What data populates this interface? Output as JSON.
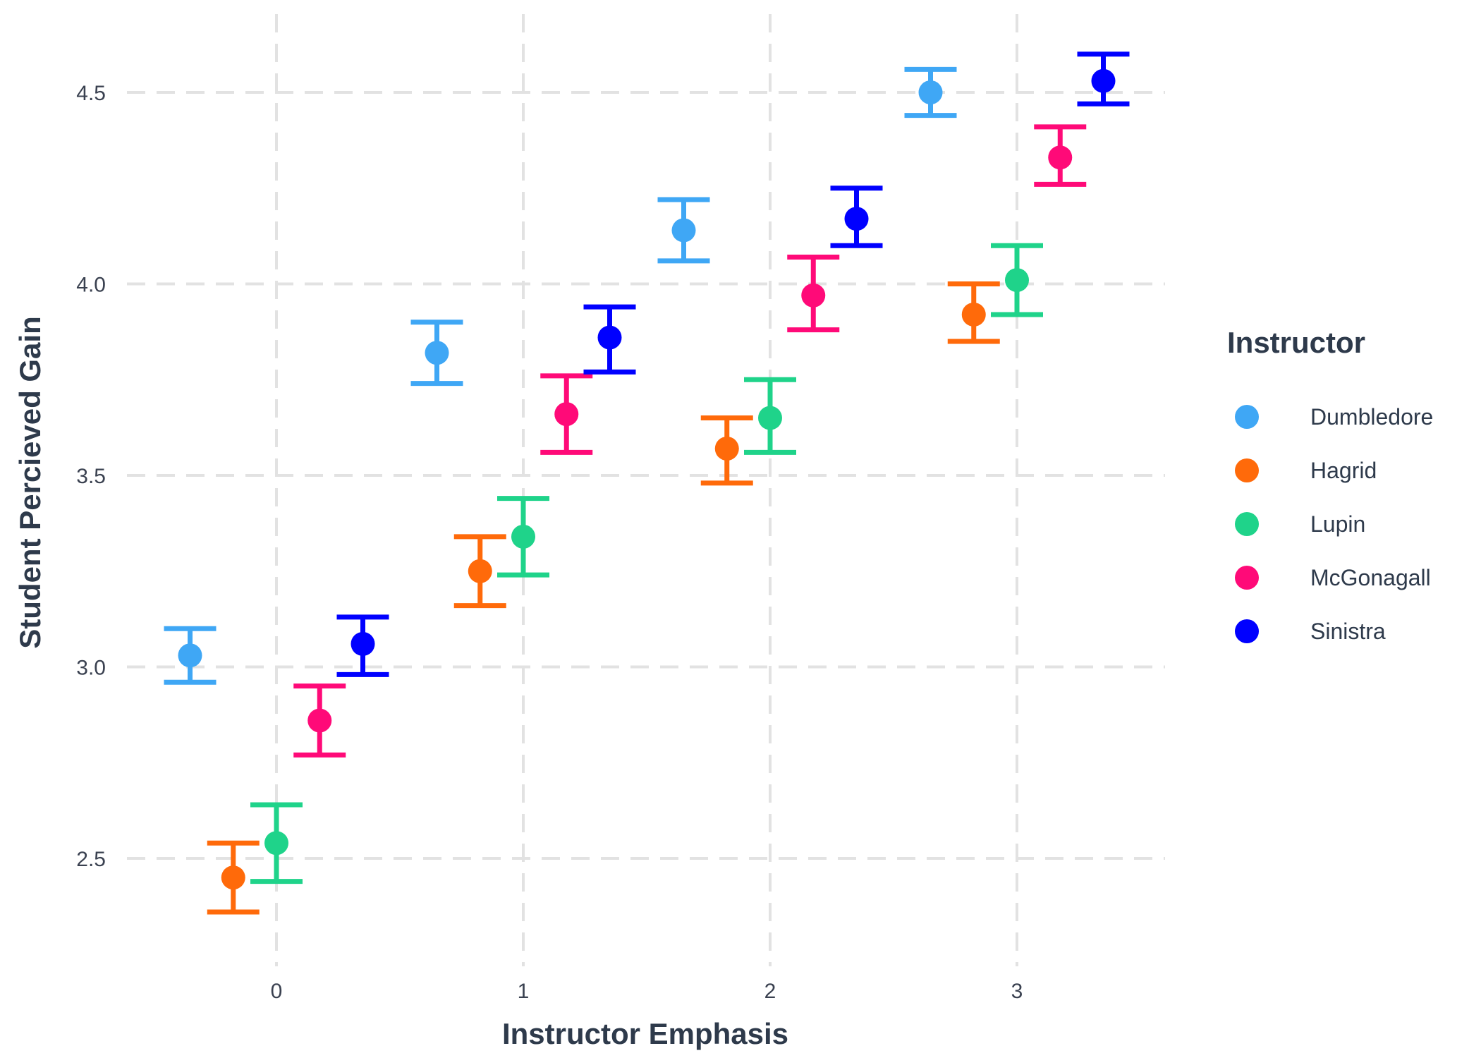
{
  "chart_data": {
    "type": "scatter",
    "xlabel": "Instructor Emphasis",
    "ylabel": "Student Percieved Gain",
    "xlim": [
      -0.5,
      3.6
    ],
    "ylim": [
      2.28,
      4.7
    ],
    "x_ticks": [
      0,
      1,
      2,
      3
    ],
    "y_ticks": [
      2.5,
      3.0,
      3.5,
      4.0,
      4.5
    ],
    "grid": true,
    "error_bars": true,
    "legend": {
      "title": "Instructor",
      "placement": "right"
    },
    "series": [
      {
        "name": "Dumbledore",
        "color": "#3fa7f5",
        "points": [
          {
            "x": 0,
            "y": 3.03,
            "lo": 2.96,
            "hi": 3.1
          },
          {
            "x": 1,
            "y": 3.82,
            "lo": 3.74,
            "hi": 3.9
          },
          {
            "x": 2,
            "y": 4.14,
            "lo": 4.06,
            "hi": 4.22
          },
          {
            "x": 3,
            "y": 4.5,
            "lo": 4.44,
            "hi": 4.56
          }
        ]
      },
      {
        "name": "Hagrid",
        "color": "#ff6a0a",
        "points": [
          {
            "x": 0,
            "y": 2.45,
            "lo": 2.36,
            "hi": 2.54
          },
          {
            "x": 1,
            "y": 3.25,
            "lo": 3.16,
            "hi": 3.34
          },
          {
            "x": 2,
            "y": 3.57,
            "lo": 3.48,
            "hi": 3.65
          },
          {
            "x": 3,
            "y": 3.92,
            "lo": 3.85,
            "hi": 4.0
          }
        ]
      },
      {
        "name": "Lupin",
        "color": "#1fd38a",
        "points": [
          {
            "x": 0,
            "y": 2.54,
            "lo": 2.44,
            "hi": 2.64
          },
          {
            "x": 1,
            "y": 3.34,
            "lo": 3.24,
            "hi": 3.44
          },
          {
            "x": 2,
            "y": 3.65,
            "lo": 3.56,
            "hi": 3.75
          },
          {
            "x": 3,
            "y": 4.01,
            "lo": 3.92,
            "hi": 4.1
          }
        ]
      },
      {
        "name": "McGonagall",
        "color": "#ff0a78",
        "points": [
          {
            "x": 0,
            "y": 2.86,
            "lo": 2.77,
            "hi": 2.95
          },
          {
            "x": 1,
            "y": 3.66,
            "lo": 3.56,
            "hi": 3.76
          },
          {
            "x": 2,
            "y": 3.97,
            "lo": 3.88,
            "hi": 4.07
          },
          {
            "x": 3,
            "y": 4.33,
            "lo": 4.26,
            "hi": 4.41
          }
        ]
      },
      {
        "name": "Sinistra",
        "color": "#0000ff",
        "points": [
          {
            "x": 0,
            "y": 3.06,
            "lo": 2.98,
            "hi": 3.13
          },
          {
            "x": 1,
            "y": 3.86,
            "lo": 3.77,
            "hi": 3.94
          },
          {
            "x": 2,
            "y": 4.17,
            "lo": 4.1,
            "hi": 4.25
          },
          {
            "x": 3,
            "y": 4.53,
            "lo": 4.47,
            "hi": 4.6
          }
        ]
      }
    ]
  }
}
